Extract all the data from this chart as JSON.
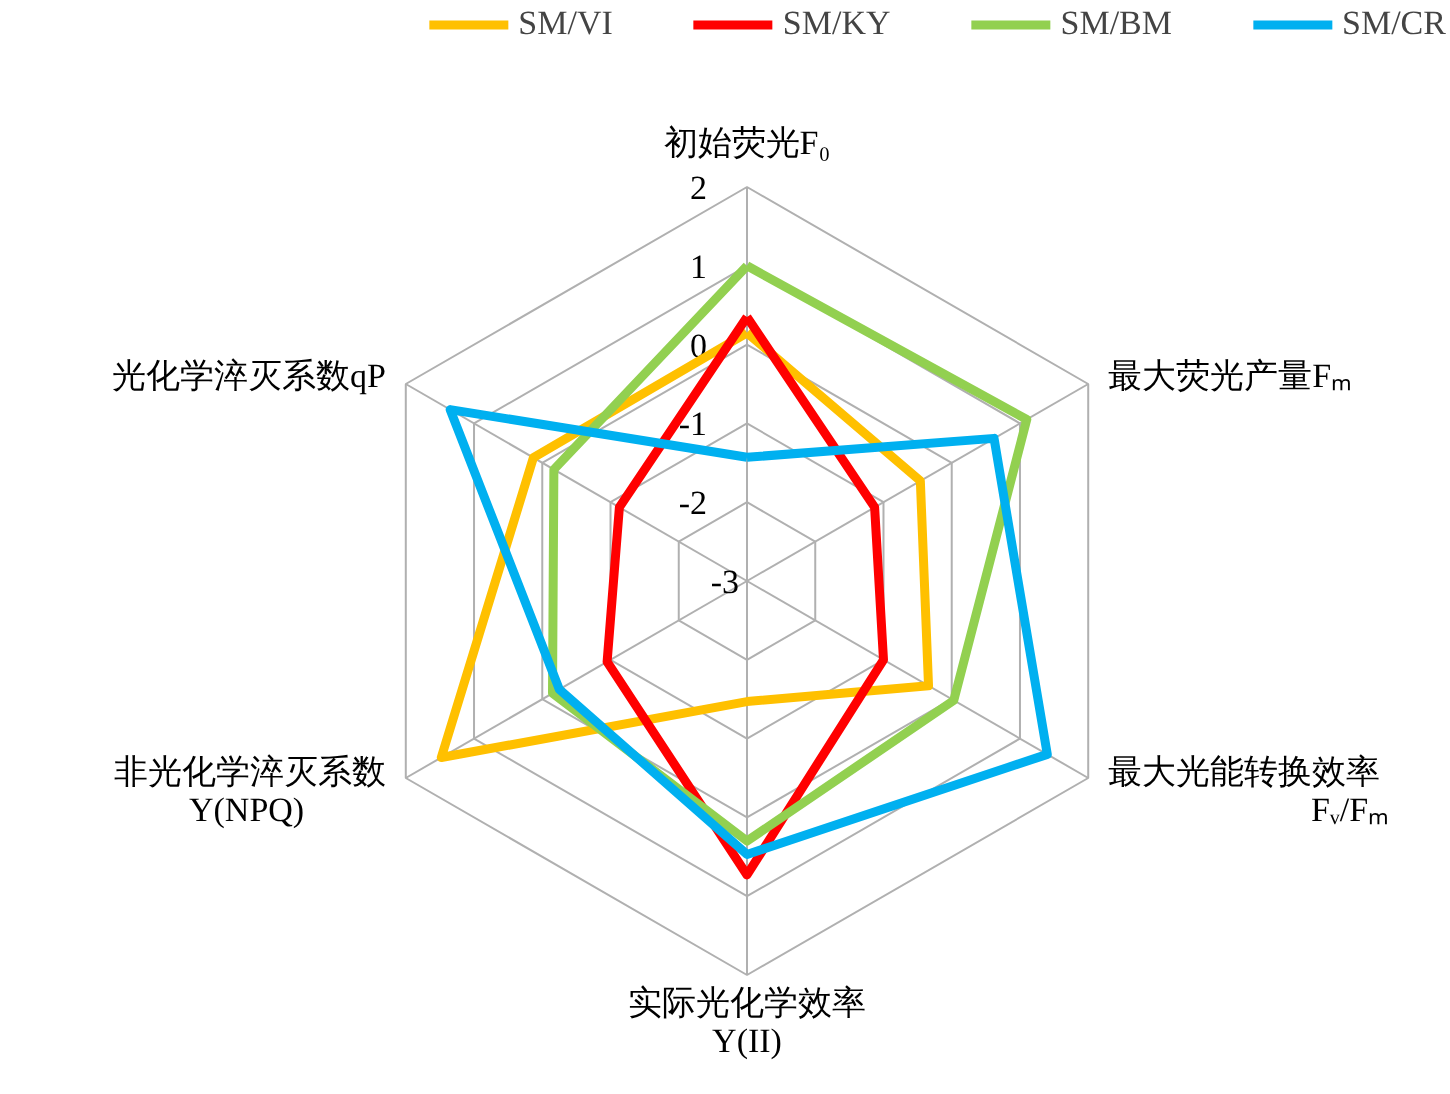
{
  "chart_data": {
    "type": "radar",
    "categories": [
      "初始荧光F₀",
      "最大荧光产量Fₘ",
      "最大光能转换效率\nFᵥ/Fₘ",
      "实际光化学效率\nY(II)",
      "非光化学淬灭系数\nY(NPQ)",
      "光化学淬灭系数qP"
    ],
    "ylim": [
      -3,
      2
    ],
    "yticks": [
      -3,
      -2,
      -1,
      0,
      1,
      2
    ],
    "grid": true,
    "legend": "top",
    "line_style": "solid",
    "marker": "none",
    "series": [
      {
        "name": "SM/VI",
        "color": "#ffc000",
        "values": [
          0.15,
          -0.46,
          -0.34,
          -1.47,
          1.48,
          0.13
        ]
      },
      {
        "name": "SM/KY",
        "color": "#ff0000",
        "values": [
          0.35,
          -1.13,
          -1.0,
          0.73,
          -0.95,
          -1.13
        ]
      },
      {
        "name": "SM/BM",
        "color": "#92d050",
        "values": [
          1.0,
          1.1,
          0.03,
          0.3,
          -0.15,
          -0.17
        ]
      },
      {
        "name": "SM/CR",
        "color": "#00b0f0",
        "values": [
          -1.43,
          0.62,
          1.4,
          0.47,
          -0.25,
          1.35
        ]
      }
    ]
  }
}
